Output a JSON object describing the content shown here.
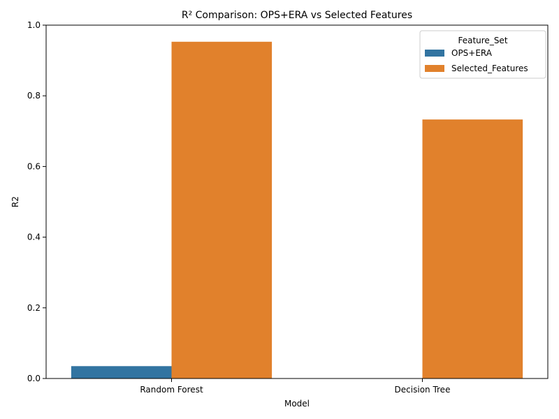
{
  "chart_data": {
    "type": "bar",
    "title": "R² Comparison: OPS+ERA vs Selected Features",
    "xlabel": "Model",
    "ylabel": "R2",
    "categories": [
      "Random Forest",
      "Decision Tree"
    ],
    "series": [
      {
        "name": "OPS+ERA",
        "values": [
          0.035,
          0.0
        ],
        "color": "#3274a1"
      },
      {
        "name": "Selected_Features",
        "values": [
          0.953,
          0.733
        ],
        "color": "#e1812c"
      }
    ],
    "ylim": [
      0,
      1.0
    ],
    "yticks": [
      "0.0",
      "0.2",
      "0.4",
      "0.6",
      "0.8",
      "1.0"
    ],
    "grid": false,
    "legend": {
      "title": "Feature_Set",
      "placement": "top-right"
    }
  }
}
